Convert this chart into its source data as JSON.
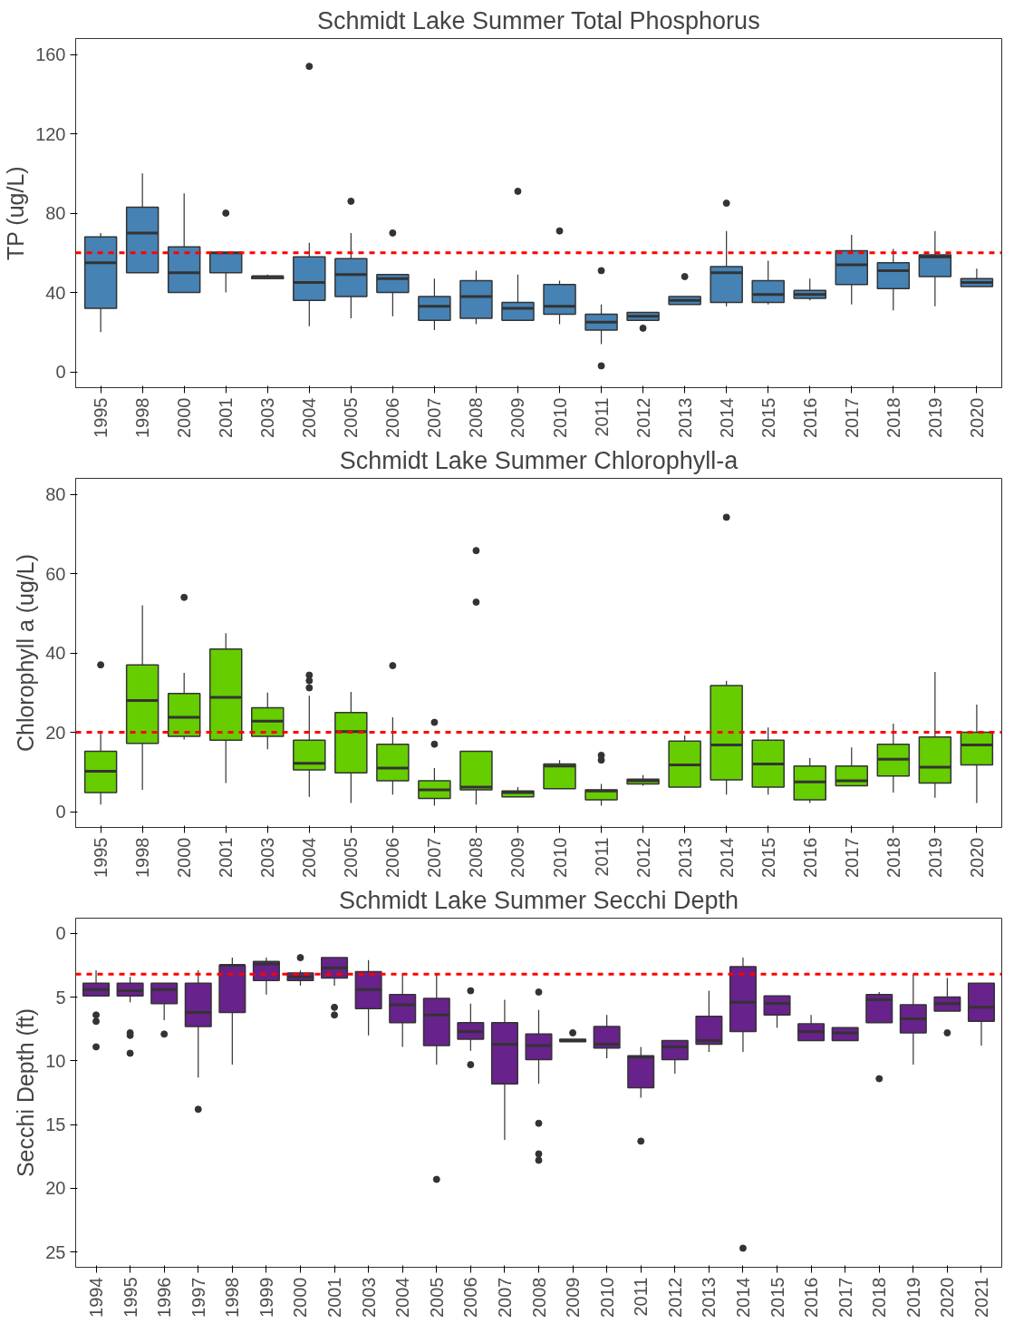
{
  "chart_data": [
    {
      "type": "box",
      "title": "Schmidt Lake Summer Total Phosphorus",
      "ylabel": "TP (ug/L)",
      "categories": [
        "1995",
        "1998",
        "2000",
        "2001",
        "2003",
        "2004",
        "2005",
        "2006",
        "2007",
        "2008",
        "2009",
        "2010",
        "2011",
        "2012",
        "2013",
        "2014",
        "2015",
        "2016",
        "2017",
        "2018",
        "2019",
        "2020"
      ],
      "ylim": [
        -8,
        168
      ],
      "yticks": [
        0,
        40,
        80,
        120,
        160
      ],
      "grid": false,
      "ref_lines": [
        {
          "axis": "y",
          "value": 60,
          "color": "#ff0000",
          "line_style": "dashed"
        }
      ],
      "series": [
        {
          "color": "#4682b4",
          "boxes": [
            {
              "low": 20,
              "q1": 32,
              "median": 55,
              "q3": 68,
              "high": 70
            },
            {
              "low": 50,
              "q1": 50,
              "median": 70,
              "q3": 83,
              "high": 100
            },
            {
              "low": 40,
              "q1": 40,
              "median": 50,
              "q3": 63,
              "high": 90
            },
            {
              "low": 40,
              "q1": 50,
              "median": 60,
              "q3": 60,
              "high": 60,
              "outliers": [
                80
              ]
            },
            {
              "low": 47,
              "q1": 47,
              "median": 48,
              "q3": 48,
              "high": 49
            },
            {
              "low": 23,
              "q1": 36,
              "median": 45,
              "q3": 58,
              "high": 65,
              "outliers": [
                154
              ]
            },
            {
              "low": 27,
              "q1": 38,
              "median": 49,
              "q3": 57,
              "high": 70,
              "outliers": [
                86
              ]
            },
            {
              "low": 28,
              "q1": 40,
              "median": 47,
              "q3": 49,
              "high": 49,
              "outliers": [
                70
              ]
            },
            {
              "low": 21,
              "q1": 26,
              "median": 33,
              "q3": 38,
              "high": 47
            },
            {
              "low": 24,
              "q1": 27,
              "median": 38,
              "q3": 46,
              "high": 51
            },
            {
              "low": 26,
              "q1": 26,
              "median": 32,
              "q3": 35,
              "high": 49,
              "outliers": [
                91
              ]
            },
            {
              "low": 24,
              "q1": 29,
              "median": 33,
              "q3": 44,
              "high": 46,
              "outliers": [
                71
              ]
            },
            {
              "low": 14,
              "q1": 21,
              "median": 25,
              "q3": 29,
              "high": 34,
              "outliers": [
                51,
                3
              ]
            },
            {
              "low": 26,
              "q1": 26,
              "median": 28,
              "q3": 30,
              "high": 30,
              "outliers": [
                22
              ]
            },
            {
              "low": 34,
              "q1": 34,
              "median": 36,
              "q3": 38,
              "high": 38,
              "outliers": [
                48
              ]
            },
            {
              "low": 33,
              "q1": 35,
              "median": 50,
              "q3": 53,
              "high": 71,
              "outliers": [
                85
              ]
            },
            {
              "low": 34,
              "q1": 35,
              "median": 39,
              "q3": 46,
              "high": 56
            },
            {
              "low": 36,
              "q1": 37,
              "median": 39,
              "q3": 41,
              "high": 47
            },
            {
              "low": 34,
              "q1": 44,
              "median": 54,
              "q3": 61,
              "high": 69
            },
            {
              "low": 31,
              "q1": 42,
              "median": 51,
              "q3": 55,
              "high": 62
            },
            {
              "low": 33,
              "q1": 48,
              "median": 58,
              "q3": 59,
              "high": 71
            },
            {
              "low": 43,
              "q1": 43,
              "median": 45,
              "q3": 47,
              "high": 52
            }
          ]
        }
      ]
    },
    {
      "type": "box",
      "title": "Schmidt Lake Summer Chlorophyll-a",
      "ylabel": "Chlorophyll a (ug/L)",
      "categories": [
        "1995",
        "1998",
        "2000",
        "2001",
        "2003",
        "2004",
        "2005",
        "2006",
        "2007",
        "2008",
        "2009",
        "2010",
        "2011",
        "2012",
        "2013",
        "2014",
        "2015",
        "2016",
        "2017",
        "2018",
        "2019",
        "2020"
      ],
      "ylim": [
        -4,
        84
      ],
      "yticks": [
        0,
        20,
        40,
        60,
        80
      ],
      "grid": false,
      "ref_lines": [
        {
          "axis": "y",
          "value": 20,
          "color": "#ff0000",
          "line_style": "dashed"
        }
      ],
      "series": [
        {
          "color": "#66cd00",
          "boxes": [
            {
              "low": 1.8,
              "q1": 4.8,
              "median": 10.2,
              "q3": 15.2,
              "high": 20,
              "outliers": [
                37
              ]
            },
            {
              "low": 5.5,
              "q1": 17.2,
              "median": 28,
              "q3": 37,
              "high": 52
            },
            {
              "low": 18.2,
              "q1": 19,
              "median": 23.8,
              "q3": 29.8,
              "high": 35,
              "outliers": [
                54
              ]
            },
            {
              "low": 7.2,
              "q1": 18,
              "median": 28.8,
              "q3": 41,
              "high": 45
            },
            {
              "low": 15.7,
              "q1": 19,
              "median": 22.8,
              "q3": 26.2,
              "high": 30
            },
            {
              "low": 3.7,
              "q1": 10.5,
              "median": 12.2,
              "q3": 18,
              "high": 29.2,
              "outliers": [
                34.4,
                33,
                31.2
              ]
            },
            {
              "low": 2.2,
              "q1": 9.8,
              "median": 20.2,
              "q3": 25,
              "high": 30.2
            },
            {
              "low": 4.3,
              "q1": 7.8,
              "median": 11,
              "q3": 17,
              "high": 23.8,
              "outliers": [
                36.8
              ]
            },
            {
              "low": 1.5,
              "q1": 3.3,
              "median": 5.5,
              "q3": 7.8,
              "high": 11,
              "outliers": [
                22.5,
                17
              ]
            },
            {
              "low": 1.8,
              "q1": 5.5,
              "median": 6.2,
              "q3": 15.2,
              "high": 15.2,
              "outliers": [
                65.8,
                52.8
              ]
            },
            {
              "low": 3.7,
              "q1": 3.7,
              "median": 4.8,
              "q3": 5.2,
              "high": 6.2
            },
            {
              "low": 5.8,
              "q1": 5.8,
              "median": 11.5,
              "q3": 12,
              "high": 13
            },
            {
              "low": 1.5,
              "q1": 3,
              "median": 5.2,
              "q3": 5.5,
              "high": 7,
              "outliers": [
                14.2,
                13
              ]
            },
            {
              "low": 6.5,
              "q1": 7,
              "median": 7.8,
              "q3": 8.2,
              "high": 9.2
            },
            {
              "low": 6.2,
              "q1": 6.2,
              "median": 11.8,
              "q3": 17.8,
              "high": 19.2
            },
            {
              "low": 4.3,
              "q1": 8,
              "median": 16.8,
              "q3": 31.8,
              "high": 33,
              "outliers": [
                74.2
              ]
            },
            {
              "low": 4.3,
              "q1": 6.2,
              "median": 12,
              "q3": 18,
              "high": 21.2
            },
            {
              "low": 2.2,
              "q1": 3,
              "median": 7.5,
              "q3": 11.5,
              "high": 13.5
            },
            {
              "low": 6.5,
              "q1": 6.5,
              "median": 7.8,
              "q3": 11.5,
              "high": 16.2
            },
            {
              "low": 4.8,
              "q1": 9,
              "median": 13.2,
              "q3": 17,
              "high": 22.2
            },
            {
              "low": 3.5,
              "q1": 7.2,
              "median": 11.2,
              "q3": 18.8,
              "high": 35.2
            },
            {
              "low": 2.2,
              "q1": 11.8,
              "median": 16.8,
              "q3": 20,
              "high": 27
            }
          ]
        }
      ]
    },
    {
      "type": "box",
      "title": "Schmidt Lake Summer Secchi Depth",
      "ylabel": "Secchi Depth (ft)",
      "categories": [
        "1994",
        "1995",
        "1996",
        "1997",
        "1998",
        "1999",
        "2000",
        "2001",
        "2003",
        "2004",
        "2005",
        "2006",
        "2007",
        "2008",
        "2009",
        "2010",
        "2011",
        "2012",
        "2013",
        "2014",
        "2015",
        "2016",
        "2017",
        "2018",
        "2019",
        "2020",
        "2021"
      ],
      "ylim": [
        26.2,
        -1.2
      ],
      "yticks": [
        0,
        5,
        10,
        15,
        20,
        25
      ],
      "grid": false,
      "ref_lines": [
        {
          "axis": "y",
          "value": 3.2,
          "color": "#ff0000",
          "line_style": "dashed"
        }
      ],
      "series": [
        {
          "color": "#68228b",
          "boxes": [
            {
              "low": 2.9,
              "q1": 3.9,
              "median": 4.4,
              "q3": 4.9,
              "high": 4.9,
              "outliers": [
                6.4,
                6.9,
                8.9
              ]
            },
            {
              "low": 3.4,
              "q1": 3.9,
              "median": 4.5,
              "q3": 4.9,
              "high": 5.4,
              "outliers": [
                7.8,
                8.0,
                9.4
              ]
            },
            {
              "low": 3.9,
              "q1": 3.9,
              "median": 4.4,
              "q3": 5.5,
              "high": 6.8,
              "outliers": [
                7.9
              ]
            },
            {
              "low": 2.9,
              "q1": 3.9,
              "median": 6.2,
              "q3": 7.3,
              "high": 11.3,
              "outliers": [
                13.8
              ]
            },
            {
              "low": 1.9,
              "q1": 2.5,
              "median": 2.5,
              "q3": 6.2,
              "high": 10.3
            },
            {
              "low": 1.9,
              "q1": 2.2,
              "median": 2.4,
              "q3": 3.7,
              "high": 4.8
            },
            {
              "low": 2.9,
              "q1": 3.1,
              "median": 3.4,
              "q3": 3.7,
              "high": 4.1,
              "outliers": [
                1.9
              ]
            },
            {
              "low": 1.9,
              "q1": 1.9,
              "median": 2.7,
              "q3": 3.5,
              "high": 4.1,
              "outliers": [
                5.8,
                6.4
              ]
            },
            {
              "low": 2.1,
              "q1": 3.0,
              "median": 4.4,
              "q3": 5.9,
              "high": 8.0
            },
            {
              "low": 3.2,
              "q1": 4.8,
              "median": 5.6,
              "q3": 7.0,
              "high": 8.9
            },
            {
              "low": 3.2,
              "q1": 5.1,
              "median": 6.4,
              "q3": 8.8,
              "high": 10.3,
              "outliers": [
                19.3
              ]
            },
            {
              "low": 5.5,
              "q1": 7.0,
              "median": 7.7,
              "q3": 8.3,
              "high": 9.2,
              "outliers": [
                4.5,
                10.3
              ]
            },
            {
              "low": 5.2,
              "q1": 7.0,
              "median": 8.7,
              "q3": 11.8,
              "high": 16.2
            },
            {
              "low": 6.0,
              "q1": 7.9,
              "median": 8.8,
              "q3": 9.9,
              "high": 11.8,
              "outliers": [
                4.6,
                14.9,
                17.3,
                17.8
              ]
            },
            {
              "low": 8.3,
              "q1": 8.3,
              "median": 8.4,
              "q3": 8.5,
              "high": 8.5,
              "outliers": [
                7.8
              ]
            },
            {
              "low": 6.4,
              "q1": 7.3,
              "median": 8.7,
              "q3": 9.0,
              "high": 9.8
            },
            {
              "low": 8.9,
              "q1": 9.6,
              "median": 9.7,
              "q3": 12.1,
              "high": 12.9,
              "outliers": [
                16.3
              ]
            },
            {
              "low": 8.4,
              "q1": 8.4,
              "median": 8.9,
              "q3": 9.9,
              "high": 11.0
            },
            {
              "low": 4.5,
              "q1": 6.5,
              "median": 8.4,
              "q3": 8.7,
              "high": 9.3
            },
            {
              "low": 1.9,
              "q1": 2.6,
              "median": 5.4,
              "q3": 7.7,
              "high": 9.3,
              "outliers": [
                24.7
              ]
            },
            {
              "low": 4.9,
              "q1": 4.9,
              "median": 5.5,
              "q3": 6.4,
              "high": 7.4
            },
            {
              "low": 6.4,
              "q1": 7.1,
              "median": 7.7,
              "q3": 8.4,
              "high": 8.4
            },
            {
              "low": 7.4,
              "q1": 7.4,
              "median": 7.8,
              "q3": 8.4,
              "high": 8.4
            },
            {
              "low": 4.6,
              "q1": 4.8,
              "median": 5.2,
              "q3": 7.0,
              "high": 7.0,
              "outliers": [
                11.4
              ]
            },
            {
              "low": 3.2,
              "q1": 5.6,
              "median": 6.7,
              "q3": 7.8,
              "high": 10.3
            },
            {
              "low": 3.5,
              "q1": 5.0,
              "median": 5.5,
              "q3": 6.1,
              "high": 6.1,
              "outliers": [
                7.8
              ]
            },
            {
              "low": 3.9,
              "q1": 3.9,
              "median": 5.8,
              "q3": 6.9,
              "high": 8.8
            }
          ]
        }
      ]
    }
  ]
}
